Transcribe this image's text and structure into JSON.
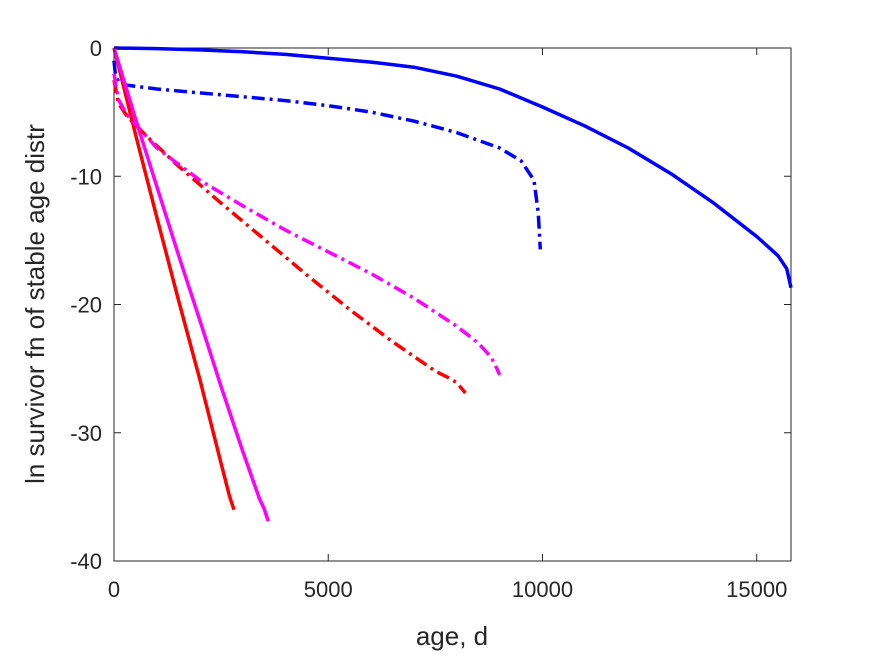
{
  "chart_data": {
    "type": "line",
    "title": "",
    "xlabel": "age, d",
    "ylabel": "ln survivor fn of stable age distr",
    "xlim": [
      0,
      15800
    ],
    "ylim": [
      -40,
      0
    ],
    "xticks": [
      0,
      5000,
      10000,
      15000
    ],
    "yticks": [
      0,
      -10,
      -20,
      -30,
      -40
    ],
    "xtick_labels": [
      "0",
      "5000",
      "10000",
      "15000"
    ],
    "ytick_labels": [
      "0",
      "-10",
      "-20",
      "-30",
      "-40"
    ],
    "grid": false,
    "colors": {
      "blue": "#0000ff",
      "red": "#ff0000",
      "magenta": "#ff00ff",
      "axis": "#262626"
    },
    "series": [
      {
        "color": "#0000ff",
        "style": "solid",
        "x": [
          0,
          1000,
          2000,
          3000,
          4000,
          5000,
          6000,
          7000,
          8000,
          9000,
          10000,
          11000,
          12000,
          13000,
          14000,
          15000,
          15500,
          15700,
          15800
        ],
        "y": [
          0,
          -0.05,
          -0.15,
          -0.3,
          -0.5,
          -0.8,
          -1.1,
          -1.5,
          -2.2,
          -3.2,
          -4.6,
          -6.1,
          -7.8,
          -9.8,
          -12.1,
          -14.7,
          -16.2,
          -17.2,
          -18.7
        ]
      },
      {
        "color": "#0000ff",
        "style": "dashdot",
        "x": [
          0,
          30,
          100,
          300,
          1000,
          2000,
          3000,
          4000,
          5000,
          6000,
          7000,
          8000,
          9000,
          9500,
          9800,
          9900,
          9950
        ],
        "y": [
          -1.0,
          -2.0,
          -2.6,
          -2.9,
          -3.2,
          -3.5,
          -3.8,
          -4.1,
          -4.5,
          -5.0,
          -5.7,
          -6.6,
          -7.8,
          -8.8,
          -10.3,
          -12.8,
          -15.7
        ]
      },
      {
        "color": "#ff0000",
        "style": "solid",
        "x": [
          0,
          500,
          1000,
          1500,
          2000,
          2500,
          2700,
          2800
        ],
        "y": [
          0,
          -6.7,
          -13.2,
          -19.6,
          -25.8,
          -32.4,
          -35.0,
          -36.0
        ]
      },
      {
        "color": "#ff00ff",
        "style": "solid",
        "x": [
          0,
          500,
          1000,
          1500,
          2000,
          2500,
          3000,
          3400,
          3500,
          3550,
          3600
        ],
        "y": [
          0,
          -5.5,
          -10.8,
          -16.1,
          -21.2,
          -26.4,
          -31.4,
          -35.2,
          -35.9,
          -36.4,
          -36.9
        ]
      },
      {
        "color": "#ff0000",
        "style": "dashdot",
        "x": [
          0,
          100,
          300,
          500,
          800,
          1500,
          2500,
          3500,
          4500,
          5500,
          6500,
          7500,
          7800,
          8000,
          8100,
          8200
        ],
        "y": [
          -2.5,
          -4.3,
          -5.3,
          -6.0,
          -7.0,
          -9.2,
          -12.1,
          -14.9,
          -17.7,
          -20.4,
          -22.9,
          -25.2,
          -25.7,
          -26.1,
          -26.5,
          -26.9
        ]
      },
      {
        "color": "#ff00ff",
        "style": "dashdot",
        "x": [
          0,
          100,
          300,
          600,
          1000,
          2000,
          3000,
          4000,
          5000,
          6000,
          7000,
          8000,
          8500,
          8800,
          8950,
          9000
        ],
        "y": [
          -2.0,
          -4.0,
          -5.2,
          -6.3,
          -7.8,
          -10.3,
          -12.3,
          -14.2,
          -15.9,
          -17.6,
          -19.5,
          -21.7,
          -23.0,
          -24.1,
          -25.1,
          -25.5
        ]
      }
    ]
  }
}
